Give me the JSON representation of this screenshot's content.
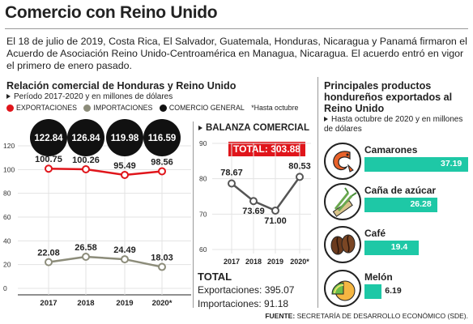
{
  "header": {
    "title": "Comercio con Reino Unido",
    "intro": "El 18 de julio de 2019, Costa Rica, El Salvador, Guatemala, Honduras, Nicaragua y Panamá firmaron el Acuerdo de Asociación Reino Unido-Centroamérica en Managua, Nicaragua. El acuerdo entró en vigor el primero de enero pasado."
  },
  "left": {
    "title": "Relación comercial de Honduras y Reino Unido",
    "period": "Período 2017-2020 y en millones de dólares",
    "legend": {
      "exp": "EXPORTACIONES",
      "imp": "IMPORTACIONES",
      "com": "COMERCIO GENERAL",
      "note": "*Hasta octubre"
    }
  },
  "middle": {
    "title": "BALANZA COMERCIAL",
    "total_badge": "TOTAL: 303.88",
    "totals_head": "TOTAL",
    "exports_line": "Exportaciones: 395.07",
    "imports_line": "Importaciones: 91.18"
  },
  "right": {
    "title": "Principales productos hondureños exportados al Reino Unido",
    "note": "Hasta octubre de 2020 y en millones de dólares"
  },
  "source": {
    "label": "FUENTE:",
    "text": "SECRETARÍA DE DESARROLLO ECONÓMICO (SDE)."
  },
  "colors": {
    "exports": "#e0151b",
    "imports": "#8c8c7a",
    "general": "#111111",
    "balance": "#555555",
    "bars": "#1ec8a6"
  },
  "chart_data": [
    {
      "type": "line",
      "categories": [
        "2017",
        "2018",
        "2019",
        "2020*"
      ],
      "ylim": [
        0,
        120
      ],
      "yticks": [
        "0",
        "20",
        "40",
        "60",
        "80",
        "100",
        "120"
      ],
      "series": [
        {
          "name": "EXPORTACIONES",
          "values": [
            100.75,
            100.26,
            95.49,
            98.56
          ],
          "labels": [
            "100.75",
            "100.26",
            "95.49",
            "98.56"
          ]
        },
        {
          "name": "IMPORTACIONES",
          "values": [
            22.08,
            26.58,
            24.49,
            18.03
          ],
          "labels": [
            "22.08",
            "26.58",
            "24.49",
            "18.03"
          ]
        }
      ],
      "general_trade": {
        "name": "COMERCIO GENERAL",
        "values": [
          122.84,
          126.84,
          119.98,
          116.59
        ],
        "labels": [
          "122.84",
          "126.84",
          "119.98",
          "116.59"
        ]
      },
      "grid": true
    },
    {
      "type": "line",
      "title": "BALANZA COMERCIAL",
      "categories": [
        "2017",
        "2018",
        "2019",
        "2020*"
      ],
      "ylim": [
        60,
        90
      ],
      "yticks": [
        "60",
        "70",
        "80",
        "90"
      ],
      "series": [
        {
          "values": [
            78.67,
            73.69,
            71.0,
            80.53
          ],
          "labels": [
            "78.67",
            "73.69",
            "71.00",
            "80.53"
          ]
        }
      ],
      "grid": true
    },
    {
      "type": "bar",
      "title": "Principales productos hondureños exportados al Reino Unido",
      "categories": [
        "Camarones",
        "Caña de azúcar",
        "Café",
        "Melón"
      ],
      "values": [
        37.19,
        26.28,
        19.4,
        6.19
      ],
      "labels": [
        "37.19",
        "26.28",
        "19.4",
        "6.19"
      ],
      "icons": [
        "shrimp-icon",
        "sugarcane-icon",
        "coffee-beans-icon",
        "melon-icon"
      ]
    }
  ]
}
